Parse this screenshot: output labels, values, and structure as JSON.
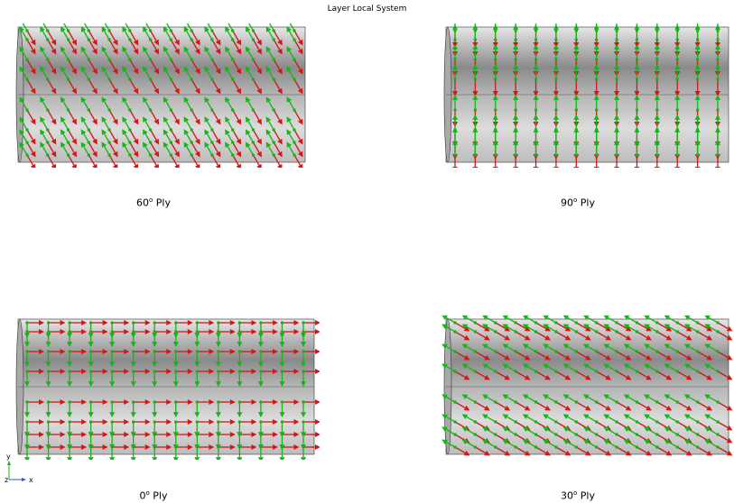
{
  "title": "Layer Local System",
  "colors": {
    "fiber": "#d01818",
    "transverse": "#18b418",
    "cyl_light": "#e6e6e6",
    "cyl_dark": "#8a8a8a",
    "edge": "#333333"
  },
  "panels": [
    {
      "id": "ply-60",
      "angle": 60,
      "label_pre": "60",
      "label_sup": "o",
      "label_post": " Ply"
    },
    {
      "id": "ply-90",
      "angle": 90,
      "label_pre": "90",
      "label_sup": "o",
      "label_post": " Ply"
    },
    {
      "id": "ply-0",
      "angle": 0,
      "label_pre": "0",
      "label_sup": "o",
      "label_post": " Ply"
    },
    {
      "id": "ply-30",
      "angle": 30,
      "label_pre": "30",
      "label_sup": "o",
      "label_post": " Ply"
    }
  ],
  "triad": {
    "y": "y",
    "z": "z",
    "x": "x"
  }
}
